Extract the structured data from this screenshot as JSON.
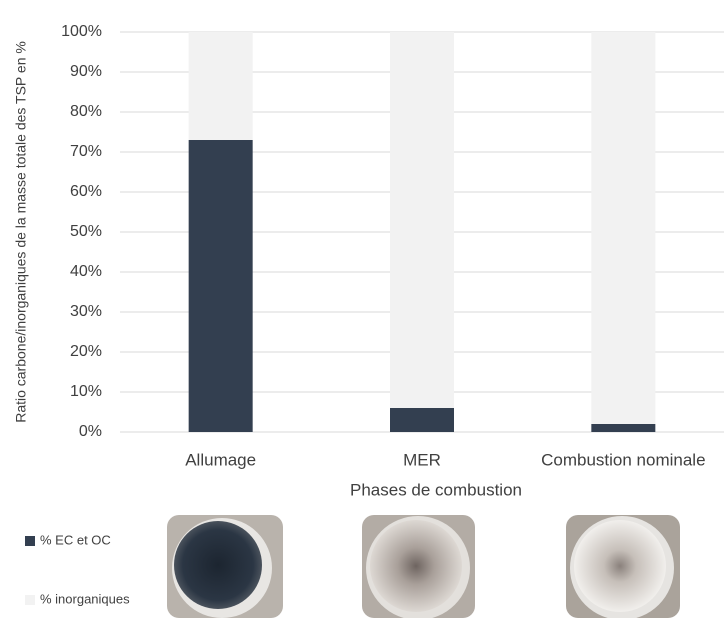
{
  "chart_data": {
    "type": "stacked_bar",
    "y_label": "Ratio carbone/inorganiques de la masse totale des TSP en %",
    "x_label": "Phases de combustion",
    "categories": [
      "Allumage",
      "MER",
      "Combustion nominale"
    ],
    "series": [
      {
        "name": "% EC et OC",
        "color": "#333f50",
        "values": [
          73,
          6,
          2
        ]
      },
      {
        "name": "% inorganiques",
        "color": "#f2f2f2",
        "values": [
          27,
          94,
          98
        ]
      }
    ],
    "ylim": [
      0,
      100
    ],
    "yticks": [
      {
        "value": 0,
        "label": "0%"
      },
      {
        "value": 10,
        "label": "10%"
      },
      {
        "value": 20,
        "label": "20%"
      },
      {
        "value": 30,
        "label": "30%"
      },
      {
        "value": 40,
        "label": "40%"
      },
      {
        "value": 50,
        "label": "50%"
      },
      {
        "value": 60,
        "label": "60%"
      },
      {
        "value": 70,
        "label": "70%"
      },
      {
        "value": 80,
        "label": "80%"
      },
      {
        "value": 90,
        "label": "90%"
      },
      {
        "value": 100,
        "label": "100%"
      }
    ],
    "grid": true
  }
}
